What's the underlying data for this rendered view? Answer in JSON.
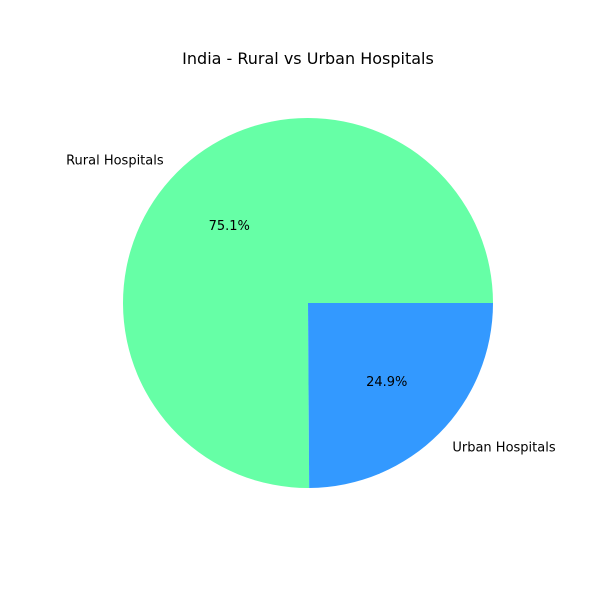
{
  "chart_data": {
    "type": "pie",
    "title": "India - Rural vs Urban Hospitals",
    "categories": [
      "Rural Hospitals",
      "Urban Hospitals"
    ],
    "values": [
      75.1,
      24.9
    ],
    "value_labels": [
      "75.1%",
      "24.9%"
    ],
    "colors": [
      "#66ffa6",
      "#3399ff"
    ],
    "start_angle_deg": 0,
    "direction": "counterclockwise",
    "legend": "none"
  }
}
